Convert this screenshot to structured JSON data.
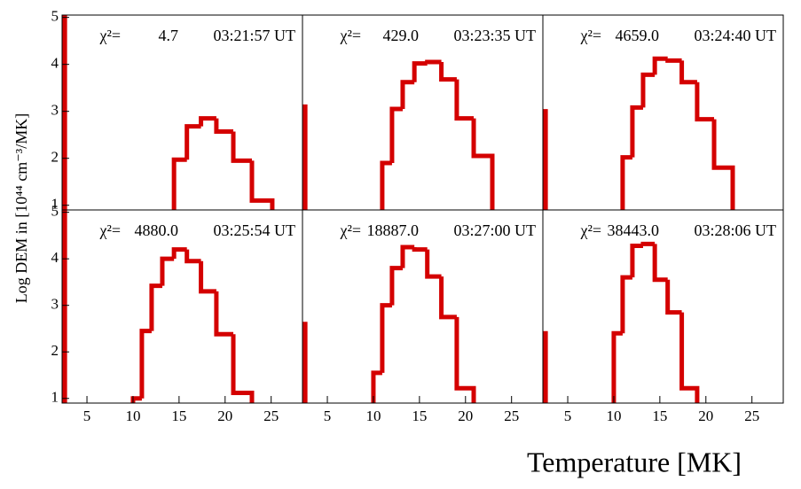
{
  "figure": {
    "xlabel": "Temperature [MK]",
    "ylabel": "Log DEM in [10⁴⁴ cm⁻³/MK]"
  },
  "chart_data": [
    {
      "type": "histogram",
      "chi2_symbol": "χ²=",
      "chi2": "4.7",
      "time": "03:21:57 UT",
      "color": "#d40000",
      "bins": [
        2.4,
        2.6,
        14.45,
        15.85,
        17.38,
        19.05,
        20.89,
        22.91,
        25.12
      ],
      "values": [
        5,
        null,
        1.97,
        2.68,
        2.85,
        2.57,
        1.95,
        1.1
      ],
      "xlim": [
        2.3,
        28.4
      ],
      "ylim": [
        0.9,
        5.05
      ],
      "yticks": [
        1,
        2,
        3,
        4,
        5
      ]
    },
    {
      "type": "histogram",
      "chi2_symbol": "χ²=",
      "chi2": "429.0",
      "time": "03:23:35 UT",
      "color": "#d40000",
      "bins": [
        2.4,
        2.6,
        10.96,
        12.02,
        13.18,
        14.45,
        15.85,
        17.38,
        19.05,
        20.89,
        22.91
      ],
      "values": [
        3.1,
        null,
        1.9,
        3.05,
        3.62,
        4.02,
        4.05,
        3.68,
        2.85,
        2.05
      ],
      "xlim": [
        2.3,
        28.4
      ],
      "ylim": [
        0.9,
        5.05
      ]
    },
    {
      "type": "histogram",
      "chi2_symbol": "χ²=",
      "chi2": "4659.0",
      "time": "03:24:40 UT",
      "color": "#d40000",
      "bins": [
        2.4,
        2.6,
        10.96,
        12.02,
        13.18,
        14.45,
        15.85,
        17.38,
        19.05,
        20.89,
        22.91
      ],
      "values": [
        3.0,
        null,
        2.02,
        3.08,
        3.78,
        4.12,
        4.08,
        3.62,
        2.83,
        1.8
      ],
      "xlim": [
        2.3,
        28.4
      ],
      "ylim": [
        0.9,
        5.05
      ]
    },
    {
      "type": "histogram",
      "chi2_symbol": "χ²=",
      "chi2": "4880.0",
      "time": "03:25:54 UT",
      "color": "#d40000",
      "bins": [
        2.4,
        2.6,
        10.0,
        10.96,
        12.02,
        13.18,
        14.45,
        15.85,
        17.38,
        19.05,
        20.89,
        22.91
      ],
      "values": [
        5,
        null,
        1.0,
        2.45,
        3.42,
        4.0,
        4.2,
        3.95,
        3.3,
        2.38,
        1.12
      ],
      "xlim": [
        2.3,
        28.4
      ],
      "ylim": [
        0.9,
        5.05
      ],
      "xticks": [
        5,
        10,
        15,
        20,
        25
      ],
      "yticks": [
        1,
        2,
        3,
        4,
        5
      ]
    },
    {
      "type": "histogram",
      "chi2_symbol": "χ²=",
      "chi2": "18887.0",
      "time": "03:27:00 UT",
      "color": "#d40000",
      "bins": [
        2.4,
        2.6,
        10.0,
        10.96,
        12.02,
        13.18,
        14.45,
        15.85,
        17.38,
        19.05,
        20.89
      ],
      "values": [
        2.6,
        null,
        1.55,
        3.0,
        3.8,
        4.25,
        4.2,
        3.62,
        2.75,
        1.22
      ],
      "xlim": [
        2.3,
        28.4
      ],
      "ylim": [
        0.9,
        5.05
      ],
      "xticks": [
        5,
        10,
        15,
        20,
        25
      ]
    },
    {
      "type": "histogram",
      "chi2_symbol": "χ²=",
      "chi2": "38443.0",
      "time": "03:28:06 UT",
      "color": "#d40000",
      "bins": [
        2.4,
        2.6,
        10.0,
        10.96,
        12.02,
        13.18,
        14.45,
        15.85,
        17.38,
        19.05
      ],
      "values": [
        2.4,
        null,
        2.4,
        3.6,
        4.28,
        4.32,
        3.55,
        2.85,
        1.22
      ],
      "xlim": [
        2.3,
        28.4
      ],
      "ylim": [
        0.9,
        5.05
      ],
      "xticks": [
        5,
        10,
        15,
        20,
        25
      ]
    }
  ]
}
